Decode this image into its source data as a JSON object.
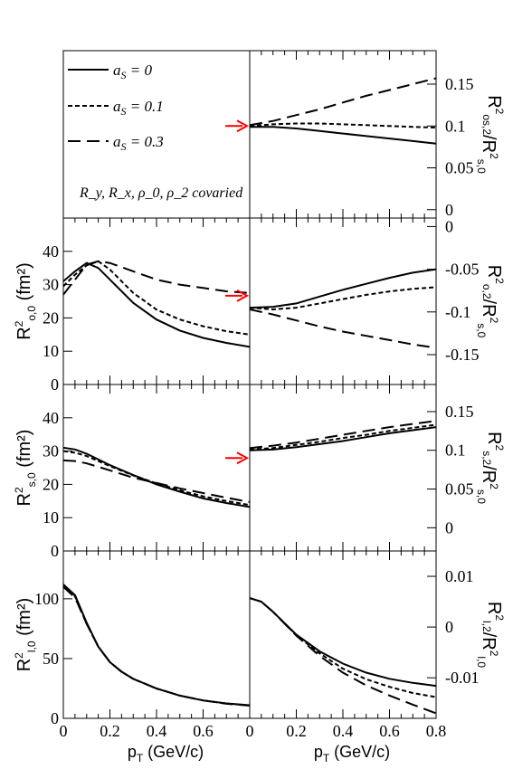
{
  "legend": {
    "entries": [
      {
        "label": "a",
        "sub": "S",
        "value": " = 0",
        "style": "solid"
      },
      {
        "label": "a",
        "sub": "S",
        "value": " = 0.1",
        "style": "dotted"
      },
      {
        "label": "a",
        "sub": "S",
        "value": " = 0.3",
        "style": "dashed"
      }
    ],
    "covaried_note": "R_y, R_x, ρ_0, ρ_2 covaried"
  },
  "chart_data": [
    {
      "type": "line",
      "panel": "right-1",
      "xlim": [
        0,
        0.8
      ],
      "ylim": [
        -0.01,
        0.19
      ],
      "ylabel": "R²os,2/R²s,0",
      "yticks": [
        0,
        0.05,
        0.1,
        0.15
      ],
      "ytick_labels": [
        "0",
        "0.05",
        "0.1",
        "0.15"
      ],
      "arrow_value": 0.1,
      "series": [
        {
          "style": "solid",
          "x": [
            0,
            0.1,
            0.2,
            0.3,
            0.4,
            0.5,
            0.6,
            0.7,
            0.8
          ],
          "y": [
            0.099,
            0.099,
            0.097,
            0.094,
            0.091,
            0.088,
            0.085,
            0.082,
            0.079
          ]
        },
        {
          "style": "dotted",
          "x": [
            0,
            0.1,
            0.2,
            0.3,
            0.4,
            0.5,
            0.6,
            0.7,
            0.8
          ],
          "y": [
            0.1,
            0.102,
            0.103,
            0.103,
            0.102,
            0.101,
            0.1,
            0.099,
            0.098
          ]
        },
        {
          "style": "dashed",
          "x": [
            0,
            0.1,
            0.2,
            0.3,
            0.4,
            0.5,
            0.6,
            0.7,
            0.8
          ],
          "y": [
            0.101,
            0.106,
            0.113,
            0.12,
            0.128,
            0.136,
            0.143,
            0.15,
            0.157
          ]
        }
      ]
    },
    {
      "type": "line",
      "panel": "left-2",
      "xlim": [
        0,
        0.8
      ],
      "ylim": [
        0,
        50
      ],
      "ylabel": "R²o,0 (fm²)",
      "yticks": [
        0,
        10,
        20,
        30,
        40
      ],
      "ytick_labels": [
        "0",
        "10",
        "20",
        "30",
        "40"
      ],
      "series": [
        {
          "style": "solid",
          "x": [
            0,
            0.05,
            0.1,
            0.15,
            0.2,
            0.3,
            0.4,
            0.5,
            0.6,
            0.7,
            0.8
          ],
          "y": [
            31,
            34,
            36.5,
            35,
            31.5,
            24.5,
            19.5,
            16.2,
            14,
            12.5,
            11.3
          ]
        },
        {
          "style": "dotted",
          "x": [
            0,
            0.05,
            0.1,
            0.15,
            0.2,
            0.3,
            0.4,
            0.5,
            0.6,
            0.7,
            0.8
          ],
          "y": [
            29.5,
            33,
            35.8,
            37,
            34.5,
            27.5,
            22.5,
            19.5,
            17.5,
            16,
            15
          ]
        },
        {
          "style": "dashed",
          "x": [
            0,
            0.05,
            0.1,
            0.15,
            0.2,
            0.3,
            0.4,
            0.5,
            0.6,
            0.7,
            0.8
          ],
          "y": [
            27,
            31.5,
            36,
            37,
            36.5,
            34,
            31.5,
            30,
            29,
            28,
            27.5
          ]
        }
      ]
    },
    {
      "type": "line",
      "panel": "right-2",
      "xlim": [
        0,
        0.8
      ],
      "ylim": [
        -0.185,
        0.01
      ],
      "ylabel": "R²o,2/R²s,0",
      "yticks": [
        0,
        -0.05,
        -0.1,
        -0.15
      ],
      "ytick_labels": [
        "0",
        "-0.05",
        "-0.1",
        "-0.15"
      ],
      "arrow_value": -0.081,
      "series": [
        {
          "style": "solid",
          "x": [
            0,
            0.1,
            0.2,
            0.3,
            0.4,
            0.5,
            0.6,
            0.7,
            0.8
          ],
          "y": [
            -0.095,
            -0.094,
            -0.09,
            -0.082,
            -0.074,
            -0.067,
            -0.06,
            -0.054,
            -0.05
          ]
        },
        {
          "style": "dotted",
          "x": [
            0,
            0.1,
            0.2,
            0.3,
            0.4,
            0.5,
            0.6,
            0.7,
            0.8
          ],
          "y": [
            -0.095,
            -0.097,
            -0.095,
            -0.09,
            -0.085,
            -0.08,
            -0.076,
            -0.073,
            -0.071
          ]
        },
        {
          "style": "dashed",
          "x": [
            0,
            0.1,
            0.2,
            0.3,
            0.4,
            0.5,
            0.6,
            0.7,
            0.8
          ],
          "y": [
            -0.097,
            -0.103,
            -0.11,
            -0.117,
            -0.123,
            -0.128,
            -0.133,
            -0.138,
            -0.142
          ]
        }
      ]
    },
    {
      "type": "line",
      "panel": "left-3",
      "xlim": [
        0,
        0.8
      ],
      "ylim": [
        0,
        50
      ],
      "ylabel": "R²s,0 (fm²)",
      "yticks": [
        0,
        10,
        20,
        30,
        40
      ],
      "ytick_labels": [
        "0",
        "10",
        "20",
        "30",
        "40"
      ],
      "series": [
        {
          "style": "solid",
          "x": [
            0,
            0.05,
            0.1,
            0.2,
            0.3,
            0.4,
            0.5,
            0.6,
            0.7,
            0.8
          ],
          "y": [
            31,
            30.5,
            29.2,
            25.8,
            22.8,
            20,
            17.8,
            15.8,
            14.4,
            13.2
          ]
        },
        {
          "style": "dotted",
          "x": [
            0,
            0.05,
            0.1,
            0.2,
            0.3,
            0.4,
            0.5,
            0.6,
            0.7,
            0.8
          ],
          "y": [
            30,
            29.5,
            28.5,
            25.5,
            22.7,
            20.3,
            18.2,
            16.4,
            15,
            13.8
          ]
        },
        {
          "style": "dashed",
          "x": [
            0,
            0.05,
            0.1,
            0.2,
            0.3,
            0.4,
            0.5,
            0.6,
            0.7,
            0.8
          ],
          "y": [
            27.2,
            27,
            26.3,
            24.2,
            22,
            20.4,
            18.8,
            17.4,
            16,
            14.7
          ]
        }
      ]
    },
    {
      "type": "line",
      "panel": "right-3",
      "xlim": [
        0,
        0.8
      ],
      "ylim": [
        -0.03,
        0.185
      ],
      "ylabel": "R²s,2/R²s,0",
      "yticks": [
        0,
        0.05,
        0.1,
        0.15
      ],
      "ytick_labels": [
        "0",
        "0.05",
        "0.1",
        "0.15"
      ],
      "arrow_value": 0.09,
      "series": [
        {
          "style": "solid",
          "x": [
            0,
            0.1,
            0.2,
            0.3,
            0.4,
            0.5,
            0.6,
            0.7,
            0.8
          ],
          "y": [
            0.1,
            0.101,
            0.104,
            0.108,
            0.112,
            0.117,
            0.122,
            0.126,
            0.13
          ]
        },
        {
          "style": "dotted",
          "x": [
            0,
            0.1,
            0.2,
            0.3,
            0.4,
            0.5,
            0.6,
            0.7,
            0.8
          ],
          "y": [
            0.101,
            0.103,
            0.107,
            0.111,
            0.116,
            0.12,
            0.125,
            0.129,
            0.133
          ]
        },
        {
          "style": "dashed",
          "x": [
            0,
            0.1,
            0.2,
            0.3,
            0.4,
            0.5,
            0.6,
            0.7,
            0.8
          ],
          "y": [
            0.103,
            0.106,
            0.11,
            0.115,
            0.12,
            0.125,
            0.13,
            0.134,
            0.138
          ]
        }
      ]
    },
    {
      "type": "line",
      "panel": "left-4",
      "xlim": [
        0,
        0.8
      ],
      "ylim": [
        0,
        140
      ],
      "ylabel": "R²l,0 (fm²)",
      "xlabel": "pT (GeV/c)",
      "yticks": [
        0,
        50,
        100
      ],
      "ytick_labels": [
        "0",
        "50",
        "100"
      ],
      "xticks": [
        0,
        0.2,
        0.4,
        0.6
      ],
      "xtick_labels": [
        "0",
        "0.2",
        "0.4",
        "0.6"
      ],
      "series": [
        {
          "style": "solid",
          "x": [
            0,
            0.05,
            0.1,
            0.15,
            0.2,
            0.25,
            0.3,
            0.4,
            0.5,
            0.6,
            0.7,
            0.8
          ],
          "y": [
            112,
            103,
            80,
            60,
            47,
            39,
            33,
            25,
            19,
            15,
            12.5,
            11
          ]
        },
        {
          "style": "dotted",
          "x": [
            0,
            0.05,
            0.1,
            0.15,
            0.2,
            0.25,
            0.3,
            0.4,
            0.5,
            0.6,
            0.7,
            0.8
          ],
          "y": [
            111,
            102,
            79,
            60,
            47,
            39,
            33,
            25,
            19,
            15,
            12.3,
            10.8
          ]
        },
        {
          "style": "dashed",
          "x": [
            0,
            0.05,
            0.1,
            0.15,
            0.2,
            0.25,
            0.3,
            0.4,
            0.5,
            0.6,
            0.7,
            0.8
          ],
          "y": [
            110,
            101,
            79,
            60,
            47,
            39,
            33,
            25,
            19,
            15,
            12.2,
            10.6
          ]
        }
      ]
    },
    {
      "type": "line",
      "panel": "right-4",
      "xlim": [
        0,
        0.8
      ],
      "ylim": [
        -0.018,
        0.015
      ],
      "ylabel": "R²l,2/R²l,0",
      "xlabel": "pT (GeV/c)",
      "yticks": [
        0.01,
        0,
        -0.01
      ],
      "ytick_labels": [
        "0.01",
        "0",
        "-0.01"
      ],
      "xticks": [
        0,
        0.2,
        0.4,
        0.6,
        0.8
      ],
      "xtick_labels": [
        "0",
        "0.2",
        "0.4",
        "0.6",
        "0.8"
      ],
      "series": [
        {
          "style": "solid",
          "x": [
            0,
            0.05,
            0.1,
            0.2,
            0.3,
            0.4,
            0.5,
            0.6,
            0.7,
            0.8
          ],
          "y": [
            0.0057,
            0.005,
            0.003,
            -0.0015,
            -0.0048,
            -0.0072,
            -0.009,
            -0.0102,
            -0.011,
            -0.0116
          ]
        },
        {
          "style": "dotted",
          "x": [
            0,
            0.05,
            0.1,
            0.2,
            0.3,
            0.4,
            0.5,
            0.6,
            0.7,
            0.8
          ],
          "y": [
            0.0057,
            0.005,
            0.003,
            -0.0016,
            -0.0052,
            -0.0082,
            -0.0103,
            -0.0118,
            -0.013,
            -0.0138
          ]
        },
        {
          "style": "dashed",
          "x": [
            0,
            0.05,
            0.1,
            0.2,
            0.3,
            0.4,
            0.5,
            0.6,
            0.7,
            0.8
          ],
          "y": [
            0.0057,
            0.005,
            0.003,
            -0.0017,
            -0.0057,
            -0.009,
            -0.0115,
            -0.0135,
            -0.0153,
            -0.017
          ]
        }
      ]
    }
  ]
}
